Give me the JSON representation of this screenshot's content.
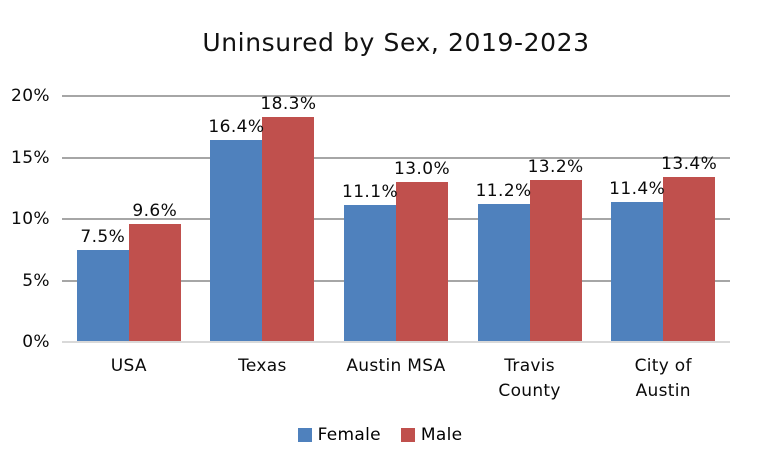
{
  "chart_data": {
    "type": "bar",
    "title": "Uninsured by Sex, 2019-2023",
    "categories": [
      "USA",
      "Texas",
      "Austin MSA",
      "Travis County",
      "City of Austin"
    ],
    "xtick_lines": [
      [
        "USA"
      ],
      [
        "Texas"
      ],
      [
        "Austin MSA"
      ],
      [
        "Travis",
        "County"
      ],
      [
        "City of",
        "Austin"
      ]
    ],
    "series": [
      {
        "name": "Female",
        "color": "#4F81BD",
        "values": [
          7.5,
          16.4,
          11.1,
          11.2,
          11.4
        ],
        "labels": [
          "7.5%",
          "16.4%",
          "11.1%",
          "11.2%",
          "11.4%"
        ]
      },
      {
        "name": "Male",
        "color": "#C0504D",
        "values": [
          9.6,
          18.3,
          13.0,
          13.2,
          13.4
        ],
        "labels": [
          "9.6%",
          "18.3%",
          "13.0%",
          "13.2%",
          "13.4%"
        ]
      }
    ],
    "ylim": [
      0,
      20
    ],
    "yticks": [
      {
        "value": 0,
        "label": "0%"
      },
      {
        "value": 5,
        "label": "5%"
      },
      {
        "value": 10,
        "label": "10%"
      },
      {
        "value": 15,
        "label": "15%"
      },
      {
        "value": 20,
        "label": "20%"
      }
    ],
    "grid": true,
    "legend_position": "bottom",
    "colors": {
      "gridline": "#A6A6A6",
      "axis_line": "#D9D9D9",
      "text": "#000000"
    }
  }
}
